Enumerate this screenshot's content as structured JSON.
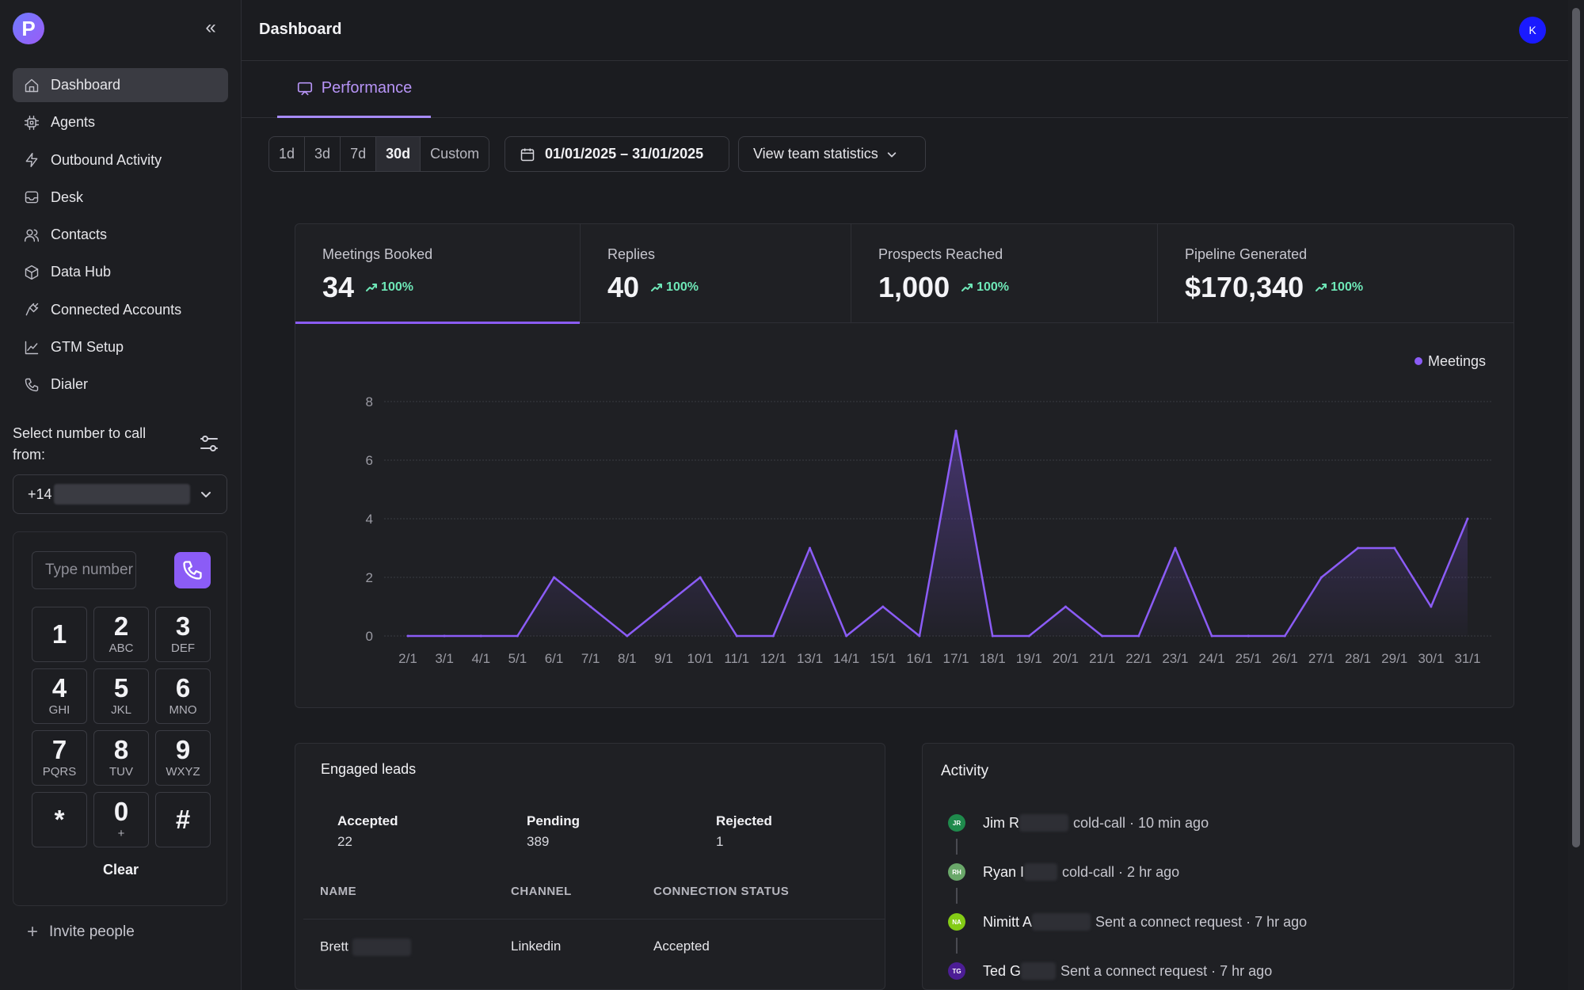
{
  "app": {
    "logo_letter": "P",
    "collapse_glyph": "«"
  },
  "sidebar": {
    "items": [
      {
        "label": "Dashboard",
        "icon": "home-icon"
      },
      {
        "label": "Agents",
        "icon": "chip-icon"
      },
      {
        "label": "Outbound Activity",
        "icon": "bolt-icon"
      },
      {
        "label": "Desk",
        "icon": "inbox-icon"
      },
      {
        "label": "Contacts",
        "icon": "users-icon"
      },
      {
        "label": "Data Hub",
        "icon": "cube-icon"
      },
      {
        "label": "Connected Accounts",
        "icon": "plug-icon"
      },
      {
        "label": "GTM Setup",
        "icon": "chart-line-icon"
      },
      {
        "label": "Dialer",
        "icon": "phone-icon"
      }
    ],
    "select_label": "Select number to call from:",
    "number_prefix": "+14",
    "dial_placeholder": "Type number to call",
    "keys": [
      {
        "digit": "1",
        "letters": ""
      },
      {
        "digit": "2",
        "letters": "ABC"
      },
      {
        "digit": "3",
        "letters": "DEF"
      },
      {
        "digit": "4",
        "letters": "GHI"
      },
      {
        "digit": "5",
        "letters": "JKL"
      },
      {
        "digit": "6",
        "letters": "MNO"
      },
      {
        "digit": "7",
        "letters": "PQRS"
      },
      {
        "digit": "8",
        "letters": "TUV"
      },
      {
        "digit": "9",
        "letters": "WXYZ"
      },
      {
        "digit": "*",
        "letters": ""
      },
      {
        "digit": "0",
        "letters": "+"
      },
      {
        "digit": "#",
        "letters": ""
      }
    ],
    "clear_label": "Clear",
    "invite_label": "Invite people"
  },
  "header": {
    "title": "Dashboard",
    "avatar_initial": "K"
  },
  "tabs": [
    {
      "label": "Performance"
    }
  ],
  "filters": {
    "ranges": [
      "1d",
      "3d",
      "7d",
      "30d",
      "Custom"
    ],
    "active_range": "30d",
    "date_range": "01/01/2025 – 31/01/2025",
    "team_label": "View team statistics"
  },
  "stats": [
    {
      "label": "Meetings Booked",
      "value": "34",
      "change": "100%"
    },
    {
      "label": "Replies",
      "value": "40",
      "change": "100%"
    },
    {
      "label": "Prospects Reached",
      "value": "1,000",
      "change": "100%"
    },
    {
      "label": "Pipeline Generated",
      "value": "$170,340",
      "change": "100%"
    }
  ],
  "chart_data": {
    "type": "area",
    "series": [
      {
        "name": "Meetings",
        "values": [
          0,
          0,
          0,
          0,
          2,
          1,
          0,
          1,
          2,
          0,
          0,
          3,
          0,
          1,
          0,
          7,
          0,
          0,
          1,
          0,
          0,
          3,
          0,
          0,
          0,
          2,
          3,
          3,
          1,
          4
        ]
      }
    ],
    "categories": [
      "2/1",
      "3/1",
      "4/1",
      "5/1",
      "6/1",
      "7/1",
      "8/1",
      "9/1",
      "10/1",
      "11/1",
      "12/1",
      "13/1",
      "14/1",
      "15/1",
      "16/1",
      "17/1",
      "18/1",
      "19/1",
      "20/1",
      "21/1",
      "22/1",
      "23/1",
      "24/1",
      "25/1",
      "26/1",
      "27/1",
      "28/1",
      "29/1",
      "30/1",
      "31/1"
    ],
    "yticks": [
      "0",
      "2",
      "4",
      "6",
      "8"
    ],
    "ylim": [
      0,
      8
    ],
    "legend": "top-right",
    "grid": true,
    "color": "#8b5cf6"
  },
  "leads": {
    "title": "Engaged leads",
    "summary": [
      {
        "label": "Accepted",
        "value": "22"
      },
      {
        "label": "Pending",
        "value": "389"
      },
      {
        "label": "Rejected",
        "value": "1"
      }
    ],
    "columns": [
      "NAME",
      "CHANNEL",
      "CONNECTION STATUS"
    ],
    "rows": [
      {
        "name": "Brett",
        "channel": "Linkedin",
        "status": "Accepted"
      }
    ]
  },
  "activity": {
    "title": "Activity",
    "items": [
      {
        "initials": "JR",
        "name": "Jim R",
        "text": "cold-call · 10 min ago",
        "color": "#1f8a4c"
      },
      {
        "initials": "RH",
        "name": "Ryan I",
        "text": "cold-call · 2 hr ago",
        "color": "#6aa86a"
      },
      {
        "initials": "NA",
        "name": "Nimitt A",
        "text": "Sent a connect request · 7 hr ago",
        "color": "#84cc16"
      },
      {
        "initials": "TG",
        "name": "Ted G",
        "text": "Sent a connect request · 7 hr ago",
        "color": "#4c1d95"
      }
    ]
  }
}
